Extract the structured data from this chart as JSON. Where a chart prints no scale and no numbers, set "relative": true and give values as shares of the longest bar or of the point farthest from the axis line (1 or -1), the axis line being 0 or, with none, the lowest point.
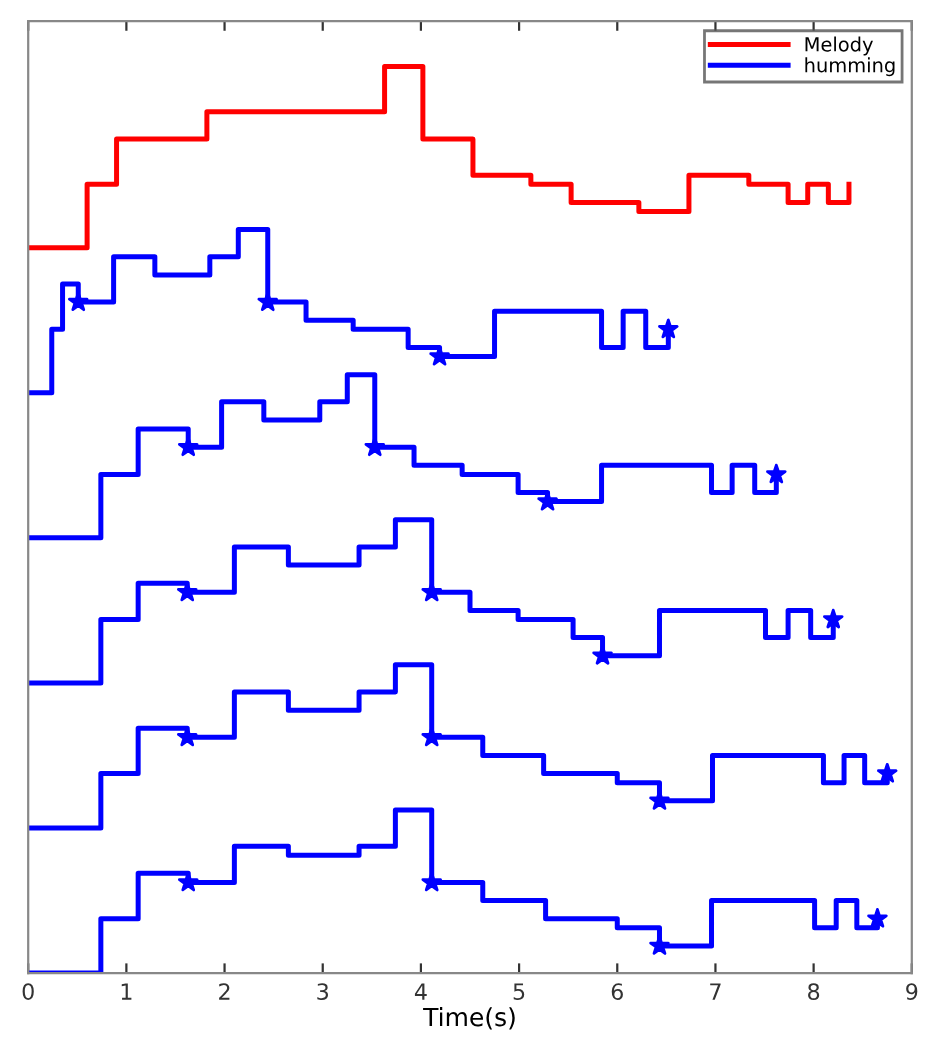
{
  "chart_data": {
    "type": "step",
    "xlabel": "Time(s)",
    "relative": true,
    "xlim": [
      0,
      9
    ],
    "xticks": [
      0,
      1,
      2,
      3,
      4,
      5,
      6,
      7,
      8,
      9
    ],
    "legend": "top right",
    "grid": false,
    "series": [
      {
        "name": "Melody",
        "color": "#ff0000",
        "x": [
          0,
          0.6,
          0.9,
          1.82,
          3.63,
          4.02,
          4.53,
          5.12,
          5.53,
          6.22,
          6.73,
          7.34,
          7.74,
          7.94,
          8.15,
          8.36
        ],
        "values": [
          0.8,
          0.87,
          0.92,
          0.95,
          1.0,
          0.92,
          0.88,
          0.87,
          0.85,
          0.84,
          0.88,
          0.87,
          0.85,
          0.87,
          0.85,
          0.87
        ]
      },
      {
        "name": "humming",
        "color": "#0000ff",
        "x": [
          0,
          0.24,
          0.35,
          0.51,
          0.87,
          1.29,
          1.85,
          2.14,
          2.44,
          2.83,
          3.31,
          3.87,
          4.19,
          4.75,
          5.84,
          6.06,
          6.29,
          6.52
        ],
        "values": [
          0.64,
          0.71,
          0.76,
          0.74,
          0.79,
          0.77,
          0.79,
          0.82,
          0.74,
          0.72,
          0.71,
          0.69,
          0.68,
          0.73,
          0.69,
          0.73,
          0.69,
          0.71
        ]
      },
      {
        "color": "#0000ff",
        "x": [
          0,
          0.74,
          1.12,
          1.63,
          1.97,
          2.4,
          2.97,
          3.25,
          3.53,
          3.93,
          4.42,
          4.99,
          5.29,
          5.84,
          6.96,
          7.17,
          7.4,
          7.62
        ],
        "values": [
          0.48,
          0.55,
          0.6,
          0.58,
          0.63,
          0.61,
          0.63,
          0.66,
          0.58,
          0.56,
          0.55,
          0.53,
          0.52,
          0.56,
          0.53,
          0.56,
          0.53,
          0.55
        ]
      },
      {
        "color": "#0000ff",
        "x": [
          0,
          0.74,
          1.12,
          1.62,
          2.1,
          2.65,
          3.37,
          3.74,
          4.11,
          4.5,
          4.99,
          5.55,
          5.85,
          6.43,
          7.51,
          7.74,
          7.97,
          8.2
        ],
        "values": [
          0.32,
          0.39,
          0.43,
          0.42,
          0.47,
          0.45,
          0.47,
          0.5,
          0.42,
          0.4,
          0.39,
          0.37,
          0.35,
          0.4,
          0.37,
          0.4,
          0.37,
          0.39
        ]
      },
      {
        "color": "#0000ff",
        "x": [
          0,
          0.74,
          1.12,
          1.62,
          2.1,
          2.65,
          3.37,
          3.74,
          4.11,
          4.63,
          5.25,
          6.0,
          6.43,
          6.97,
          8.1,
          8.31,
          8.52,
          8.75
        ],
        "values": [
          0.16,
          0.22,
          0.27,
          0.26,
          0.31,
          0.29,
          0.31,
          0.34,
          0.26,
          0.24,
          0.22,
          0.21,
          0.19,
          0.24,
          0.21,
          0.24,
          0.21,
          0.22
        ]
      },
      {
        "color": "#0000ff",
        "x": [
          0,
          0.74,
          1.12,
          1.63,
          2.1,
          2.65,
          3.37,
          3.74,
          4.11,
          4.63,
          5.27,
          6.0,
          6.43,
          6.96,
          8.01,
          8.23,
          8.44,
          8.65
        ],
        "values": [
          0,
          0.06,
          0.11,
          0.1,
          0.14,
          0.13,
          0.14,
          0.18,
          0.1,
          0.08,
          0.06,
          0.05,
          0.03,
          0.08,
          0.05,
          0.08,
          0.05,
          0.06
        ]
      },
      {
        "type": "scatter",
        "marker": "star",
        "color": "#0000ff",
        "x": [
          0.51,
          2.44,
          4.19,
          6.52,
          1.63,
          3.53,
          5.29,
          7.62,
          1.62,
          4.11,
          5.85,
          8.2,
          1.62,
          4.11,
          6.43,
          8.75,
          1.63,
          4.11,
          6.43,
          8.65
        ],
        "values": [
          0.74,
          0.74,
          0.68,
          0.71,
          0.58,
          0.58,
          0.52,
          0.55,
          0.42,
          0.42,
          0.35,
          0.39,
          0.26,
          0.26,
          0.19,
          0.22,
          0.1,
          0.1,
          0.03,
          0.06
        ]
      }
    ]
  }
}
